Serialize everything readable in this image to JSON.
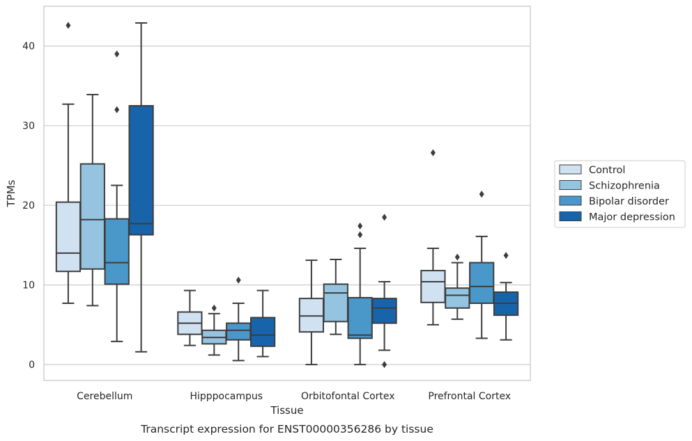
{
  "chart_data": {
    "type": "box",
    "caption": "Transcript expression for ENST00000356286 by tissue",
    "xlabel": "Tissue",
    "ylabel": "TPMs",
    "ylim": [
      -2,
      45
    ],
    "yticks": [
      0,
      10,
      20,
      30,
      40
    ],
    "grid": true,
    "legend_position": "right-outside",
    "categories": [
      "Cerebellum",
      "Hipppocampus",
      "Orbitofontal Cortex",
      "Prefrontal Cortex"
    ],
    "series": [
      {
        "name": "Control",
        "color": "#d0e1f2",
        "boxes": [
          {
            "whislo": 7.7,
            "q1": 11.7,
            "med": 14.0,
            "q3": 20.4,
            "whishi": 32.7,
            "fliers": [
              42.6
            ]
          },
          {
            "whislo": 2.4,
            "q1": 3.8,
            "med": 5.2,
            "q3": 6.6,
            "whishi": 9.3,
            "fliers": []
          },
          {
            "whislo": 0.0,
            "q1": 4.1,
            "med": 6.1,
            "q3": 8.3,
            "whishi": 13.1,
            "fliers": []
          },
          {
            "whislo": 5.0,
            "q1": 7.8,
            "med": 10.4,
            "q3": 11.8,
            "whishi": 14.6,
            "fliers": [
              26.6
            ]
          }
        ]
      },
      {
        "name": "Schizophrenia",
        "color": "#94c4df",
        "boxes": [
          {
            "whislo": 7.4,
            "q1": 12.0,
            "med": 18.2,
            "q3": 25.2,
            "whishi": 33.9,
            "fliers": []
          },
          {
            "whislo": 1.2,
            "q1": 2.6,
            "med": 3.4,
            "q3": 4.3,
            "whishi": 6.4,
            "fliers": [
              7.1
            ]
          },
          {
            "whislo": 3.8,
            "q1": 5.4,
            "med": 9.0,
            "q3": 10.1,
            "whishi": 13.2,
            "fliers": []
          },
          {
            "whislo": 5.7,
            "q1": 7.1,
            "med": 8.7,
            "q3": 9.6,
            "whishi": 12.8,
            "fliers": [
              13.5
            ]
          }
        ]
      },
      {
        "name": "Bipolar disorder",
        "color": "#4a98c9",
        "boxes": [
          {
            "whislo": 2.9,
            "q1": 10.1,
            "med": 12.8,
            "q3": 18.3,
            "whishi": 22.5,
            "fliers": [
              32.0,
              39.0
            ]
          },
          {
            "whislo": 0.5,
            "q1": 3.1,
            "med": 4.3,
            "q3": 5.2,
            "whishi": 7.7,
            "fliers": [
              10.6
            ]
          },
          {
            "whislo": 0.0,
            "q1": 3.3,
            "med": 3.7,
            "q3": 8.4,
            "whishi": 14.6,
            "fliers": [
              16.3,
              17.4
            ]
          },
          {
            "whislo": 3.3,
            "q1": 7.7,
            "med": 9.8,
            "q3": 12.8,
            "whishi": 16.1,
            "fliers": [
              21.4
            ]
          }
        ]
      },
      {
        "name": "Major depression",
        "color": "#1764ab",
        "boxes": [
          {
            "whislo": 1.6,
            "q1": 16.3,
            "med": 17.7,
            "q3": 32.5,
            "whishi": 42.9,
            "fliers": []
          },
          {
            "whislo": 1.0,
            "q1": 2.3,
            "med": 3.7,
            "q3": 5.9,
            "whishi": 9.3,
            "fliers": []
          },
          {
            "whislo": 1.8,
            "q1": 5.2,
            "med": 7.1,
            "q3": 8.3,
            "whishi": 10.4,
            "fliers": [
              0.0,
              18.5
            ]
          },
          {
            "whislo": 3.1,
            "q1": 6.2,
            "med": 7.7,
            "q3": 9.1,
            "whishi": 10.3,
            "fliers": [
              13.7
            ]
          }
        ]
      }
    ]
  }
}
